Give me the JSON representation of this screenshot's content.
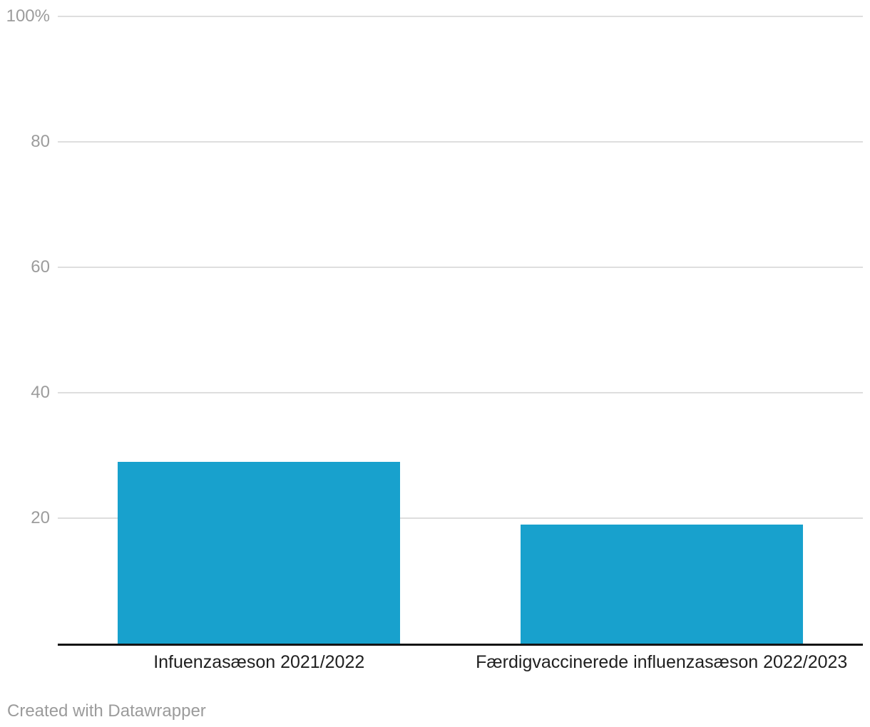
{
  "chart_data": {
    "type": "bar",
    "categories": [
      "Infuenzasæson 2021/2022",
      "Færdigvaccinerede influenzasæson 2022/2023"
    ],
    "values": [
      29,
      19
    ],
    "title": "",
    "xlabel": "",
    "ylabel": "",
    "ylim": [
      0,
      100
    ],
    "yticks": [
      20,
      40,
      60,
      80,
      100
    ],
    "ytick_labels": [
      "20",
      "40",
      "60",
      "80",
      "100%"
    ],
    "grid": true,
    "legend": "none",
    "bar_color": "#18a1cd"
  },
  "colors": {
    "bar": "#18a1cd",
    "gridline": "#dedede",
    "tick_label": "#9c9c9c",
    "category_label": "#1f1f1f",
    "axis_line": "#141414",
    "footer": "#9b9b9b",
    "background": "#ffffff"
  },
  "footer": {
    "credit": "Created with Datawrapper"
  }
}
